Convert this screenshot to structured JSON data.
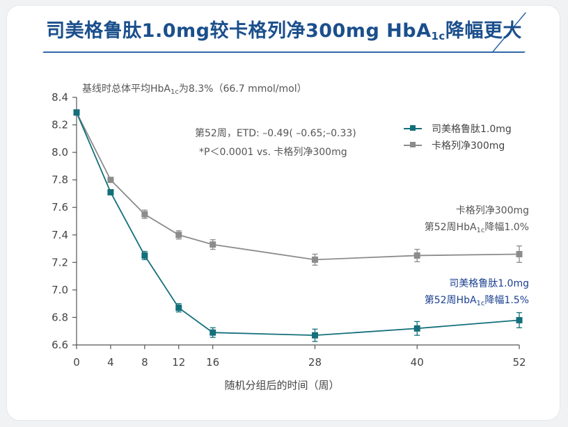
{
  "title": {
    "main": "司美格鲁肽1.0mg较卡格列净300mg HbA",
    "sub": "1c",
    "tail": "降幅更大"
  },
  "notes": {
    "baseline_pre": "基线时总体平均HbA",
    "baseline_sub": "1c",
    "baseline_post": "为8.3%（66.7 mmol/mol）",
    "etd": "第52周，ETD: –0.49( –0.65;–0.33)",
    "pvalue": "*P＜0.0001 vs. 卡格列净300mg"
  },
  "end_labels": {
    "cana_line1": "卡格列净300mg",
    "cana_line2_pre": "第52周HbA",
    "cana_line2_sub": "1c",
    "cana_line2_post": "降幅1.0%",
    "sema_line1": "司美格鲁肽1.0mg",
    "sema_line2_pre": "第52周HbA",
    "sema_line2_sub": "1c",
    "sema_line2_post": "降幅1.5%"
  },
  "colors": {
    "semaglutide": "#136f7a",
    "canagliflozin": "#8c8c8c",
    "axis": "#555555",
    "title": "#1b4f8c"
  },
  "chart_data": {
    "type": "line",
    "xlabel": "随机分组后的时间（周）",
    "ylabel": "",
    "x": [
      0,
      4,
      8,
      12,
      16,
      28,
      40,
      52
    ],
    "x_ticks": [
      "0",
      "4",
      "8",
      "12",
      "16",
      "28",
      "40",
      "52"
    ],
    "ylim": [
      6.6,
      8.4
    ],
    "y_ticks": [
      "6.6",
      "6.8",
      "7.0",
      "7.2",
      "7.4",
      "7.6",
      "7.8",
      "8.0",
      "8.2",
      "8.4"
    ],
    "grid": false,
    "legend_position": "top-right",
    "series": [
      {
        "name": "司美格鲁肽1.0mg",
        "color": "#136f7a",
        "values": [
          8.29,
          7.71,
          7.25,
          6.87,
          6.69,
          6.67,
          6.72,
          6.78
        ],
        "error": [
          0,
          0,
          0.03,
          0.03,
          0.035,
          0.045,
          0.05,
          0.055
        ]
      },
      {
        "name": "卡格列净300mg",
        "color": "#8c8c8c",
        "values": [
          8.29,
          7.8,
          7.55,
          7.4,
          7.33,
          7.22,
          7.25,
          7.26
        ],
        "error": [
          0,
          0,
          0.03,
          0.03,
          0.035,
          0.04,
          0.045,
          0.06
        ]
      }
    ]
  }
}
